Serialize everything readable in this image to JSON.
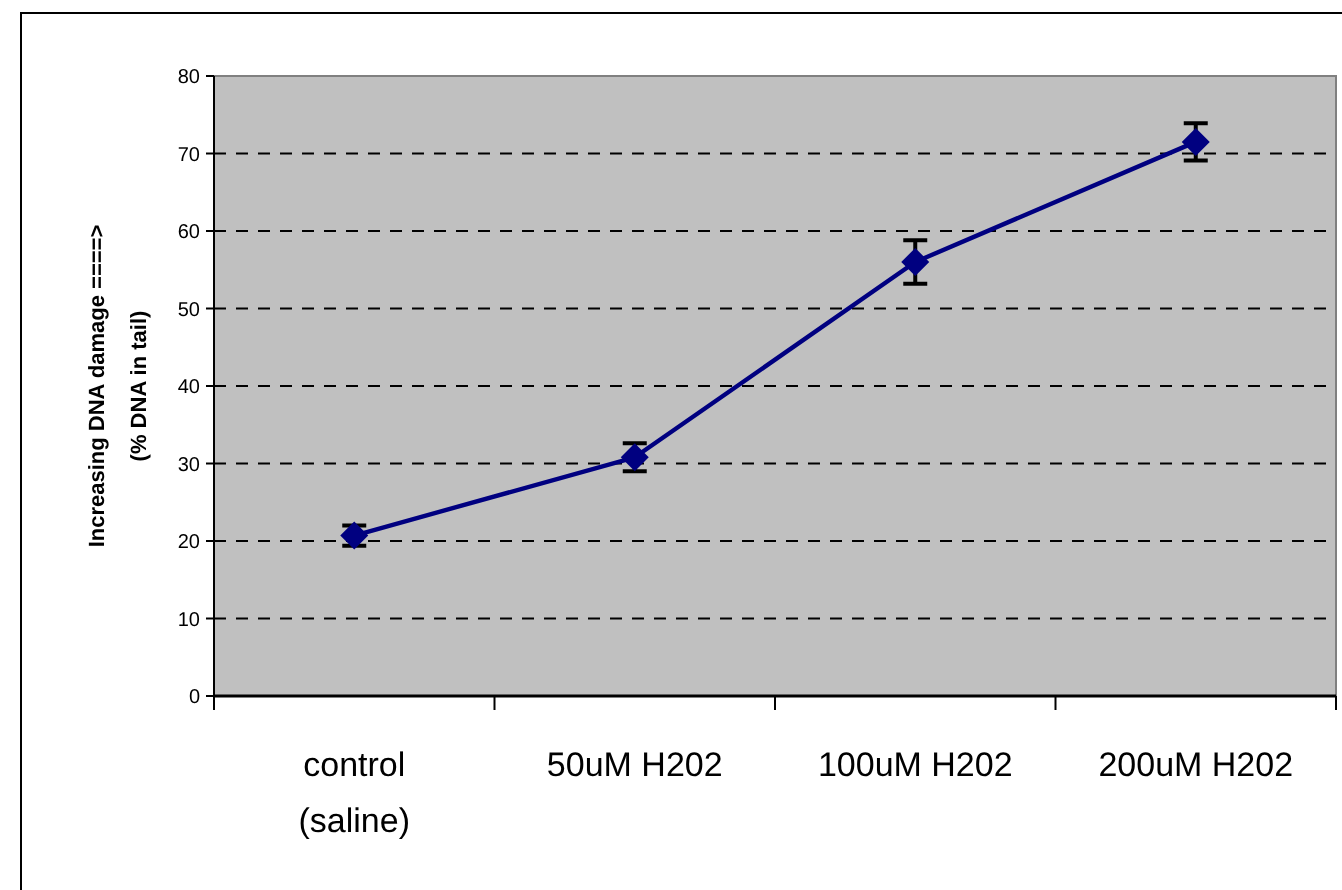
{
  "chart_data": {
    "type": "line",
    "ylabel": "Increasing DNA damage ====>\n(% DNA in tail)",
    "categories": [
      "control\n(saline)",
      "50uM H202",
      "100uM H202",
      "200uM H202"
    ],
    "series": [
      {
        "color": "#000080",
        "values": [
          20.7,
          30.8,
          56,
          71.5
        ],
        "errors": [
          1.3,
          1.8,
          2.8,
          2.4
        ]
      }
    ],
    "ylim": [
      0,
      80
    ],
    "yticks": [
      0,
      10,
      20,
      30,
      40,
      50,
      60,
      70,
      80
    ],
    "grid": "y",
    "marker": "diamond",
    "line_style": "solid"
  }
}
